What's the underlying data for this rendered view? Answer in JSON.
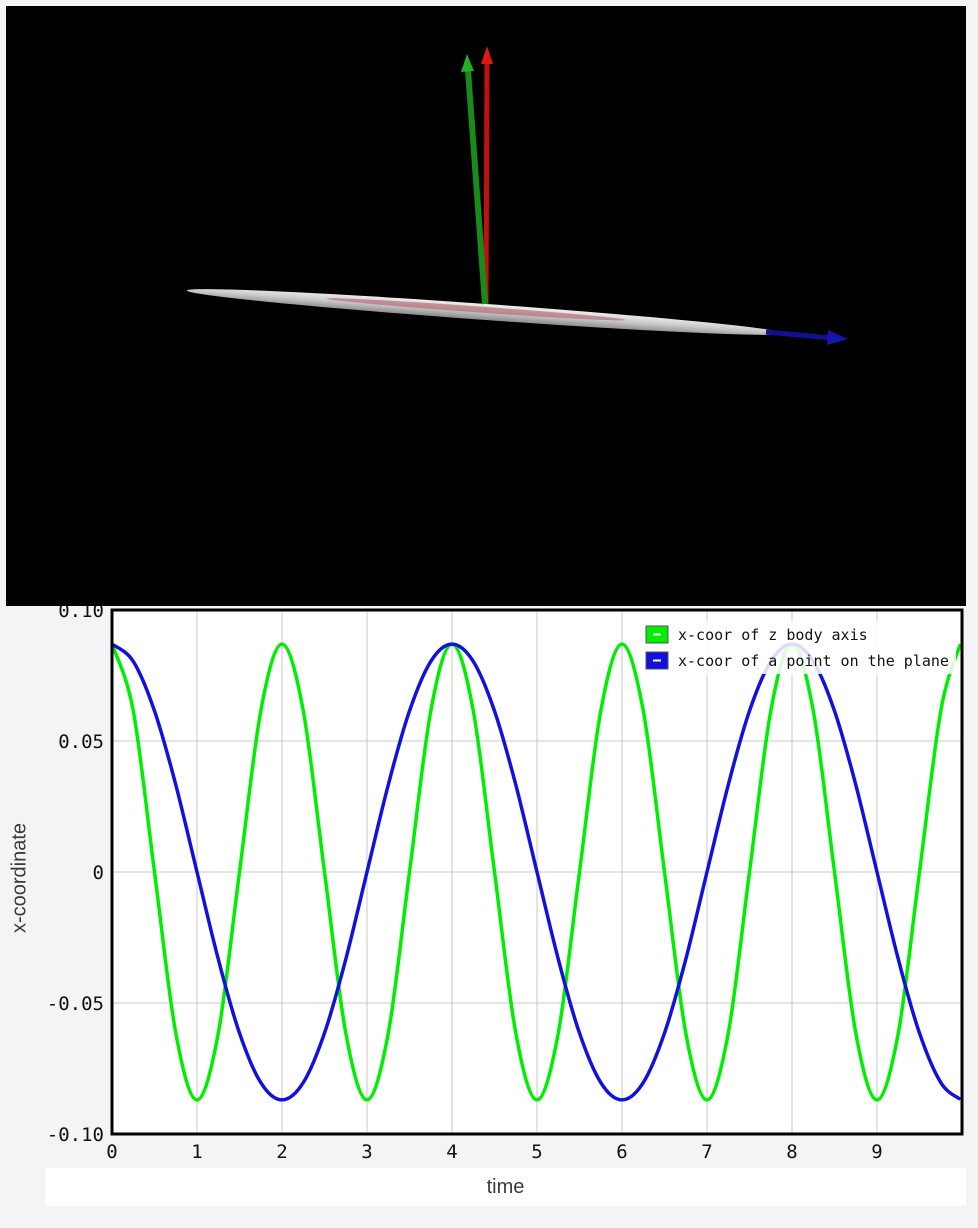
{
  "scene": {
    "background": "#000000",
    "axes_colors": {
      "x": "#1010c0",
      "y": "#1fa01f",
      "z": "#d01010"
    },
    "disc_color": "#d8d8d8"
  },
  "chart_data": {
    "type": "line",
    "title": "",
    "xlabel": "time",
    "ylabel": "x-coordinate",
    "xlim": [
      0,
      10
    ],
    "ylim": [
      -0.1,
      0.1
    ],
    "x_ticks": [
      "0",
      "1",
      "2",
      "3",
      "4",
      "5",
      "6",
      "7",
      "8",
      "9"
    ],
    "y_ticks": [
      {
        "value": 0.1,
        "label": "0.10"
      },
      {
        "value": 0.05,
        "label": "0.05"
      },
      {
        "value": 0,
        "label": "0"
      },
      {
        "value": -0.05,
        "label": "-0.05"
      },
      {
        "value": -0.1,
        "label": "-0.10"
      }
    ],
    "grid": true,
    "legend_position": "top-right",
    "series": [
      {
        "name": "x-coor of z body axis",
        "color": "#00ee00",
        "x": [
          0,
          0.25,
          0.5,
          0.75,
          1,
          1.25,
          1.5,
          1.75,
          2,
          2.25,
          2.5,
          2.75,
          3,
          3.25,
          3.5,
          3.75,
          4,
          4.25,
          4.5,
          4.75,
          5,
          5.25,
          5.5,
          5.75,
          6,
          6.25,
          6.5,
          6.75,
          7,
          7.25,
          7.5,
          7.75,
          8,
          8.25,
          8.5,
          8.75,
          9,
          9.25,
          9.5,
          9.75,
          9.98
        ],
        "y": [
          0.087,
          0.0615,
          0,
          -0.0615,
          -0.087,
          -0.0615,
          0,
          0.0615,
          0.087,
          0.0615,
          0,
          -0.0615,
          -0.087,
          -0.0615,
          0,
          0.0615,
          0.087,
          0.0615,
          0,
          -0.0615,
          -0.087,
          -0.0615,
          0,
          0.0615,
          0.087,
          0.0615,
          0,
          -0.0615,
          -0.087,
          -0.0615,
          0,
          0.0615,
          0.087,
          0.0615,
          0,
          -0.0615,
          -0.087,
          -0.0615,
          0,
          0.0615,
          0.087
        ]
      },
      {
        "name": "x-coor of a point on the plane",
        "color": "#1111dd",
        "x": [
          0,
          0.25,
          0.5,
          0.75,
          1,
          1.25,
          1.5,
          1.75,
          2,
          2.25,
          2.5,
          2.75,
          3,
          3.25,
          3.5,
          3.75,
          4,
          4.25,
          4.5,
          4.75,
          5,
          5.25,
          5.5,
          5.75,
          6,
          6.25,
          6.5,
          6.75,
          7,
          7.25,
          7.5,
          7.75,
          8,
          8.25,
          8.5,
          8.75,
          9,
          9.25,
          9.5,
          9.75,
          9.98
        ],
        "y": [
          0.087,
          0.0804,
          0.0615,
          0.0333,
          0,
          -0.0333,
          -0.0615,
          -0.0804,
          -0.087,
          -0.0804,
          -0.0615,
          -0.0333,
          0,
          0.0333,
          0.0615,
          0.0804,
          0.087,
          0.0804,
          0.0615,
          0.0333,
          0,
          -0.0333,
          -0.0615,
          -0.0804,
          -0.087,
          -0.0804,
          -0.0615,
          -0.0333,
          0,
          0.0333,
          0.0615,
          0.0804,
          0.087,
          0.0804,
          0.0615,
          0.0333,
          0,
          -0.0333,
          -0.0615,
          -0.0804,
          -0.0868
        ]
      }
    ]
  }
}
